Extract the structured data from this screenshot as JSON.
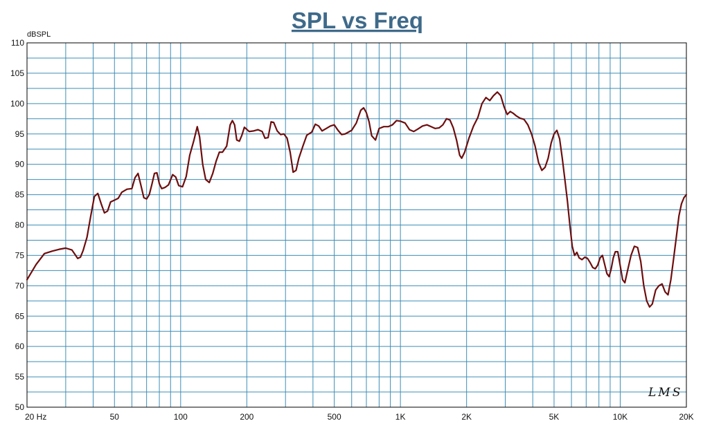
{
  "chart_data": {
    "type": "line",
    "title": "SPL vs Freq",
    "ylabel": "dBSPL",
    "xlabel": "",
    "xscale": "log",
    "xlim": [
      20,
      20000
    ],
    "ylim": [
      50,
      110
    ],
    "yticks": [
      50,
      55,
      60,
      65,
      70,
      75,
      80,
      85,
      90,
      95,
      100,
      105,
      110
    ],
    "xticks": [
      {
        "value": 20,
        "label": "20  Hz"
      },
      {
        "value": 50,
        "label": "50"
      },
      {
        "value": 100,
        "label": "100"
      },
      {
        "value": 200,
        "label": "200"
      },
      {
        "value": 500,
        "label": "500"
      },
      {
        "value": 1000,
        "label": "1K"
      },
      {
        "value": 2000,
        "label": "2K"
      },
      {
        "value": 5000,
        "label": "5K"
      },
      {
        "value": 10000,
        "label": "10K"
      },
      {
        "value": 20000,
        "label": "20K"
      }
    ],
    "grid": true,
    "watermark": "LMS",
    "colors": {
      "line": "#6e0d0d",
      "grid": "#3d8db5",
      "axis": "#000000",
      "title": "#3f6a8a"
    },
    "series": [
      {
        "name": "SPL",
        "points": [
          [
            20,
            71.0
          ],
          [
            22,
            73.5
          ],
          [
            24,
            75.3
          ],
          [
            26,
            75.7
          ],
          [
            28,
            76.0
          ],
          [
            30,
            76.2
          ],
          [
            32,
            75.9
          ],
          [
            33,
            75.2
          ],
          [
            34,
            74.5
          ],
          [
            35,
            74.7
          ],
          [
            36,
            75.8
          ],
          [
            37.5,
            78.0
          ],
          [
            39,
            81.5
          ],
          [
            40.5,
            84.7
          ],
          [
            42,
            85.2
          ],
          [
            43.5,
            83.5
          ],
          [
            45,
            82.0
          ],
          [
            46.5,
            82.3
          ],
          [
            48,
            83.8
          ],
          [
            50,
            84.1
          ],
          [
            52,
            84.4
          ],
          [
            54,
            85.4
          ],
          [
            57,
            85.9
          ],
          [
            60,
            86.0
          ],
          [
            62,
            87.8
          ],
          [
            64,
            88.5
          ],
          [
            66,
            86.5
          ],
          [
            68,
            84.5
          ],
          [
            70,
            84.3
          ],
          [
            72,
            85.0
          ],
          [
            74,
            86.7
          ],
          [
            76,
            88.5
          ],
          [
            78,
            88.6
          ],
          [
            80,
            86.8
          ],
          [
            82,
            86.0
          ],
          [
            85,
            86.2
          ],
          [
            88,
            86.6
          ],
          [
            92,
            88.3
          ],
          [
            95,
            87.9
          ],
          [
            98,
            86.5
          ],
          [
            102,
            86.3
          ],
          [
            106,
            88.0
          ],
          [
            110,
            91.5
          ],
          [
            115,
            94.0
          ],
          [
            119,
            96.2
          ],
          [
            122,
            94.5
          ],
          [
            126,
            90.0
          ],
          [
            130,
            87.5
          ],
          [
            135,
            87.0
          ],
          [
            140,
            88.5
          ],
          [
            145,
            90.5
          ],
          [
            150,
            92.0
          ],
          [
            155,
            92.0
          ],
          [
            162,
            93.0
          ],
          [
            168,
            96.5
          ],
          [
            172,
            97.2
          ],
          [
            176,
            96.5
          ],
          [
            180,
            94.0
          ],
          [
            185,
            93.8
          ],
          [
            190,
            94.8
          ],
          [
            195,
            96.1
          ],
          [
            205,
            95.4
          ],
          [
            215,
            95.5
          ],
          [
            225,
            95.7
          ],
          [
            235,
            95.4
          ],
          [
            242,
            94.3
          ],
          [
            250,
            94.4
          ],
          [
            258,
            97.0
          ],
          [
            265,
            96.9
          ],
          [
            275,
            95.5
          ],
          [
            285,
            94.9
          ],
          [
            295,
            95.0
          ],
          [
            305,
            94.3
          ],
          [
            315,
            92.0
          ],
          [
            325,
            88.7
          ],
          [
            335,
            89.0
          ],
          [
            345,
            91.0
          ],
          [
            360,
            93.0
          ],
          [
            375,
            94.8
          ],
          [
            395,
            95.3
          ],
          [
            410,
            96.6
          ],
          [
            425,
            96.3
          ],
          [
            440,
            95.5
          ],
          [
            460,
            95.9
          ],
          [
            480,
            96.3
          ],
          [
            500,
            96.5
          ],
          [
            520,
            95.6
          ],
          [
            540,
            94.9
          ],
          [
            560,
            95.0
          ],
          [
            580,
            95.3
          ],
          [
            600,
            95.6
          ],
          [
            630,
            96.8
          ],
          [
            660,
            98.9
          ],
          [
            680,
            99.3
          ],
          [
            700,
            98.5
          ],
          [
            720,
            97.0
          ],
          [
            740,
            94.7
          ],
          [
            770,
            94.0
          ],
          [
            800,
            95.9
          ],
          [
            840,
            96.2
          ],
          [
            880,
            96.2
          ],
          [
            920,
            96.5
          ],
          [
            960,
            97.2
          ],
          [
            1000,
            97.1
          ],
          [
            1050,
            96.8
          ],
          [
            1100,
            95.7
          ],
          [
            1150,
            95.4
          ],
          [
            1200,
            95.8
          ],
          [
            1260,
            96.3
          ],
          [
            1320,
            96.5
          ],
          [
            1380,
            96.2
          ],
          [
            1440,
            95.9
          ],
          [
            1500,
            96.0
          ],
          [
            1560,
            96.5
          ],
          [
            1620,
            97.5
          ],
          [
            1680,
            97.3
          ],
          [
            1740,
            96.0
          ],
          [
            1800,
            94.0
          ],
          [
            1860,
            91.5
          ],
          [
            1900,
            91.0
          ],
          [
            1960,
            92.0
          ],
          [
            2050,
            94.3
          ],
          [
            2150,
            96.3
          ],
          [
            2250,
            97.7
          ],
          [
            2350,
            100.0
          ],
          [
            2450,
            101.0
          ],
          [
            2550,
            100.5
          ],
          [
            2650,
            101.3
          ],
          [
            2760,
            101.9
          ],
          [
            2860,
            101.3
          ],
          [
            2960,
            99.5
          ],
          [
            3060,
            98.2
          ],
          [
            3160,
            98.7
          ],
          [
            3260,
            98.4
          ],
          [
            3360,
            98.0
          ],
          [
            3500,
            97.6
          ],
          [
            3650,
            97.4
          ],
          [
            3800,
            96.5
          ],
          [
            3950,
            95.0
          ],
          [
            4100,
            93.0
          ],
          [
            4250,
            90.3
          ],
          [
            4400,
            89.0
          ],
          [
            4550,
            89.5
          ],
          [
            4700,
            91.0
          ],
          [
            4850,
            93.5
          ],
          [
            5000,
            95.0
          ],
          [
            5150,
            95.6
          ],
          [
            5300,
            94.2
          ],
          [
            5450,
            91.0
          ],
          [
            5600,
            87.5
          ],
          [
            5750,
            84.0
          ],
          [
            5900,
            80.0
          ],
          [
            6050,
            76.5
          ],
          [
            6200,
            75.0
          ],
          [
            6350,
            75.5
          ],
          [
            6500,
            74.6
          ],
          [
            6700,
            74.3
          ],
          [
            6900,
            74.7
          ],
          [
            7100,
            74.5
          ],
          [
            7300,
            73.8
          ],
          [
            7500,
            73.0
          ],
          [
            7700,
            72.8
          ],
          [
            7900,
            73.4
          ],
          [
            8100,
            74.6
          ],
          [
            8300,
            75.0
          ],
          [
            8500,
            73.5
          ],
          [
            8700,
            72.0
          ],
          [
            8900,
            71.5
          ],
          [
            9100,
            72.8
          ],
          [
            9300,
            74.6
          ],
          [
            9500,
            75.6
          ],
          [
            9750,
            75.6
          ],
          [
            10000,
            73.3
          ],
          [
            10250,
            71.0
          ],
          [
            10500,
            70.5
          ],
          [
            10800,
            72.5
          ],
          [
            11200,
            75.0
          ],
          [
            11600,
            76.5
          ],
          [
            12000,
            76.3
          ],
          [
            12400,
            74.0
          ],
          [
            12800,
            70.0
          ],
          [
            13200,
            67.5
          ],
          [
            13600,
            66.5
          ],
          [
            14000,
            67.0
          ],
          [
            14500,
            69.3
          ],
          [
            15000,
            70.0
          ],
          [
            15500,
            70.3
          ],
          [
            16000,
            69.0
          ],
          [
            16500,
            68.5
          ],
          [
            17000,
            71.0
          ],
          [
            17500,
            74.5
          ],
          [
            18000,
            78.0
          ],
          [
            18500,
            81.5
          ],
          [
            19000,
            83.5
          ],
          [
            19500,
            84.5
          ],
          [
            20000,
            85.0
          ]
        ]
      }
    ]
  }
}
